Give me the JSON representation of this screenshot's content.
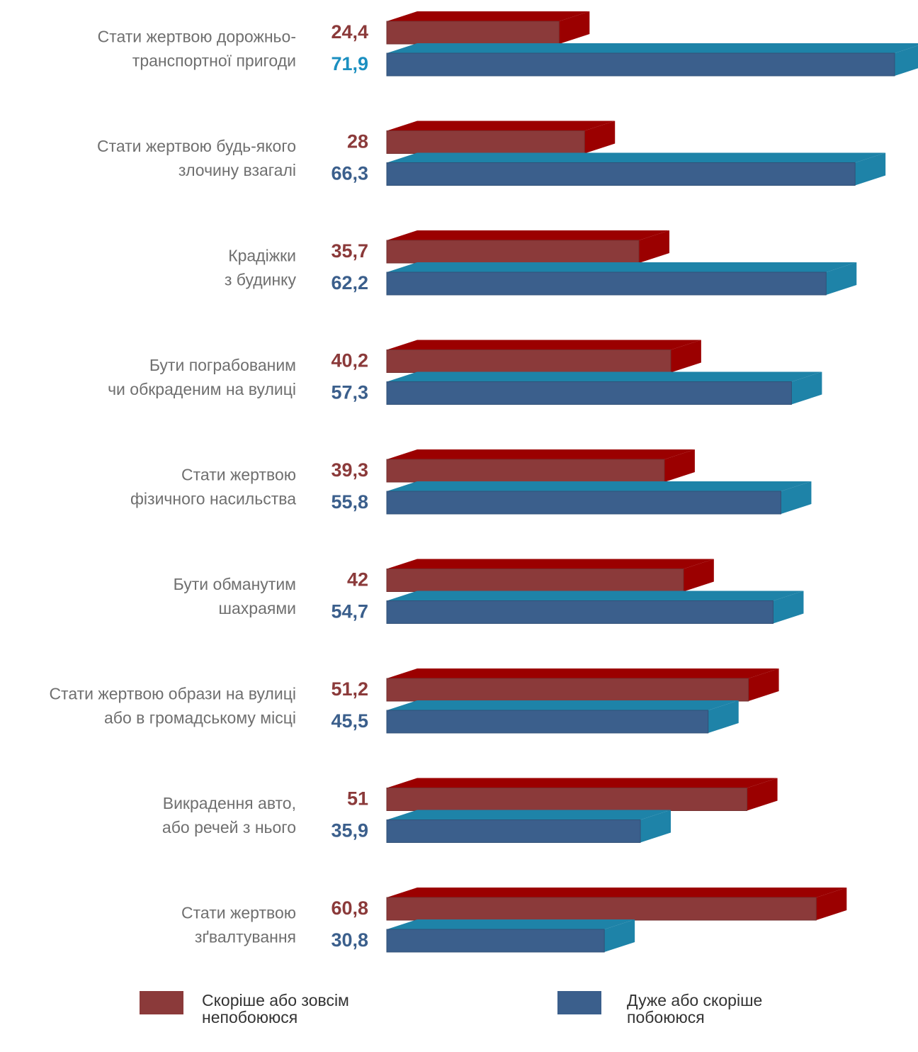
{
  "chart_data": {
    "type": "bar",
    "orientation": "horizontal",
    "style": "3d",
    "categories": [
      [
        "Стати жертвою дорожньо-",
        "транспортної пригоди"
      ],
      [
        "Стати жертвою будь-якого",
        "злочину взагалі"
      ],
      [
        "Крадіжки",
        "з будинку"
      ],
      [
        "Бути пограбованим",
        "чи обкраденим на вулиці"
      ],
      [
        "Стати жертвою",
        "фізичного насильства"
      ],
      [
        "Бути обманутим",
        "шахраями"
      ],
      [
        "Стати жертвою образи на вулиці",
        "або в громадському місці"
      ],
      [
        "Викрадення авто,",
        "або речей з нього"
      ],
      [
        "Стати жертвою",
        "зґвалтування"
      ]
    ],
    "series": [
      {
        "name": "Скоріше або зовсім непобоююся",
        "color": "#8b3a3a",
        "top_color": "#9b0000",
        "label_color": "#8b3a3a",
        "values": [
          24.4,
          28,
          35.7,
          40.2,
          39.3,
          42,
          51.2,
          51,
          60.8
        ],
        "labels": [
          "24,4",
          "28",
          "35,7",
          "40,2",
          "39,3",
          "42",
          "51,2",
          "51",
          "60,8"
        ]
      },
      {
        "name": "Дуже або скоріше побоююся",
        "color": "#3b5f8c",
        "top_color": "#1e83a8",
        "label_color": "#3b5f8c",
        "values": [
          71.9,
          66.3,
          62.2,
          57.3,
          55.8,
          54.7,
          45.5,
          35.9,
          30.8
        ],
        "labels": [
          "71,9",
          "66,3",
          "62,2",
          "57,3",
          "55,8",
          "54,7",
          "45,5",
          "35,9",
          "30,8"
        ],
        "first_label_color": "#1b8fc0"
      }
    ],
    "legend": {
      "position": "bottom",
      "items": [
        [
          "Скоріше або зовсім",
          "непобоююся"
        ],
        [
          "Дуже або скоріше",
          "побоююся"
        ]
      ]
    }
  }
}
